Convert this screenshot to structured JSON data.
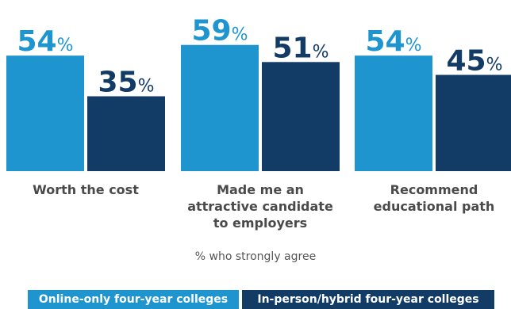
{
  "chart_data": {
    "type": "bar",
    "categories": [
      "Worth the cost",
      "Made me an attractive candidate to employers",
      "Recommend educational path"
    ],
    "category_lines": [
      [
        "Worth the cost"
      ],
      [
        "Made me an",
        "attractive candidate",
        "to employers"
      ],
      [
        "Recommend",
        "educational path"
      ]
    ],
    "series": [
      {
        "name": "Online-only four-year colleges",
        "values": [
          54,
          59,
          54
        ],
        "color": "#1f95cf"
      },
      {
        "name": "In-person/hybrid four-year colleges",
        "values": [
          35,
          51,
          45
        ],
        "color": "#123c66"
      }
    ],
    "value_suffix": "%",
    "ylim": [
      0,
      100
    ],
    "grid": false,
    "legend_position": "bottom",
    "note": "% who strongly agree"
  }
}
